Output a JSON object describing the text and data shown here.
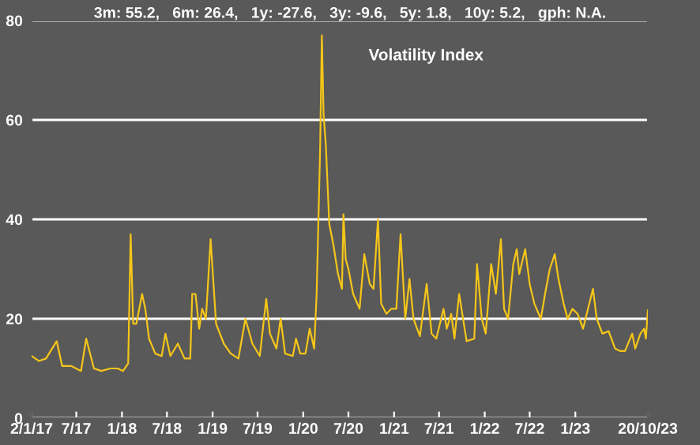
{
  "chart_data": {
    "type": "line",
    "title": "Volatility Index",
    "annotations": [
      "3m: 55.2,   6m: 26.4,   1y: -27.6,   3y: -9.6,   5y: 1.8,   10y: 5.2,   gph: N.A."
    ],
    "x": [
      "2017-01-02",
      "2017-02-01",
      "2017-03-01",
      "2017-04-13",
      "2017-05-05",
      "2017-06-10",
      "2017-07-20",
      "2017-08-10",
      "2017-09-10",
      "2017-10-10",
      "2017-11-15",
      "2017-12-15",
      "2018-01-05",
      "2018-01-26",
      "2018-02-05",
      "2018-02-15",
      "2018-02-28",
      "2018-03-23",
      "2018-04-05",
      "2018-04-20",
      "2018-05-15",
      "2018-06-10",
      "2018-06-25",
      "2018-07-15",
      "2018-08-14",
      "2018-09-10",
      "2018-10-03",
      "2018-10-11",
      "2018-10-24",
      "2018-11-08",
      "2018-11-20",
      "2018-12-05",
      "2018-12-24",
      "2019-01-15",
      "2019-02-15",
      "2019-03-15",
      "2019-04-15",
      "2019-05-13",
      "2019-06-10",
      "2019-07-10",
      "2019-08-05",
      "2019-08-20",
      "2019-09-15",
      "2019-10-02",
      "2019-10-20",
      "2019-11-20",
      "2019-12-03",
      "2019-12-20",
      "2020-01-10",
      "2020-01-27",
      "2020-02-14",
      "2020-02-24",
      "2020-03-09",
      "2020-03-16",
      "2020-03-23",
      "2020-04-01",
      "2020-04-15",
      "2020-05-01",
      "2020-05-20",
      "2020-06-05",
      "2020-06-11",
      "2020-06-20",
      "2020-07-01",
      "2020-07-20",
      "2020-08-15",
      "2020-09-03",
      "2020-09-25",
      "2020-10-10",
      "2020-10-28",
      "2020-11-10",
      "2020-12-01",
      "2020-12-20",
      "2021-01-10",
      "2021-01-27",
      "2021-02-15",
      "2021-03-04",
      "2021-03-20",
      "2021-04-15",
      "2021-05-12",
      "2021-06-01",
      "2021-06-20",
      "2021-07-19",
      "2021-08-01",
      "2021-08-19",
      "2021-09-01",
      "2021-09-20",
      "2021-10-20",
      "2021-11-20",
      "2021-12-01",
      "2021-12-20",
      "2022-01-05",
      "2022-01-27",
      "2022-02-15",
      "2022-03-07",
      "2022-03-20",
      "2022-04-05",
      "2022-04-26",
      "2022-05-10",
      "2022-05-20",
      "2022-06-13",
      "2022-07-01",
      "2022-07-20",
      "2022-08-15",
      "2022-09-01",
      "2022-09-20",
      "2022-10-10",
      "2022-10-25",
      "2022-11-15",
      "2022-12-01",
      "2022-12-20",
      "2023-01-10",
      "2023-02-01",
      "2023-03-13",
      "2023-03-28",
      "2023-04-20",
      "2023-05-15",
      "2023-06-10",
      "2023-07-01",
      "2023-07-20",
      "2023-08-18",
      "2023-08-30",
      "2023-09-20",
      "2023-10-05",
      "2023-10-12",
      "2023-10-20"
    ],
    "series": [
      {
        "color": "#f5c518",
        "values": [
          12.5,
          11.5,
          12,
          15.5,
          10.5,
          10.5,
          9.5,
          16,
          10,
          9.5,
          10,
          10,
          9.5,
          11,
          37,
          19,
          19,
          25,
          22,
          16,
          13,
          12.5,
          17,
          12.5,
          15,
          12,
          12,
          25,
          25,
          18,
          22,
          20,
          36,
          19,
          15,
          13,
          12,
          20,
          15,
          12.5,
          24,
          17,
          14,
          20,
          13,
          12.5,
          16,
          13,
          13,
          18,
          14,
          25,
          54,
          77,
          61,
          55,
          39,
          35,
          29,
          26,
          41,
          32,
          30,
          25,
          22,
          33,
          27,
          26,
          40,
          23,
          21,
          22,
          22,
          37,
          20,
          28,
          20,
          16.5,
          27,
          17,
          16,
          22,
          18,
          21,
          16,
          25,
          15.5,
          16,
          31,
          20,
          17,
          31,
          25,
          36,
          22,
          20,
          31,
          34,
          29,
          34,
          27,
          23,
          20,
          25,
          30,
          33,
          28,
          23,
          20,
          22,
          21,
          18,
          26,
          20,
          17,
          17.5,
          14,
          13.5,
          13.5,
          17,
          14,
          17,
          18,
          16,
          21.7
        ]
      }
    ],
    "xlim": [
      "2017-01-02",
      "2023-10-20"
    ],
    "xticks": [
      {
        "value": "2017-01-02",
        "label": "2/1/17"
      },
      {
        "value": "2017-07-01",
        "label": "7/17"
      },
      {
        "value": "2018-01-01",
        "label": "1/18"
      },
      {
        "value": "2018-07-01",
        "label": "7/18"
      },
      {
        "value": "2019-01-01",
        "label": "1/19"
      },
      {
        "value": "2019-07-01",
        "label": "7/19"
      },
      {
        "value": "2020-01-01",
        "label": "1/20"
      },
      {
        "value": "2020-07-01",
        "label": "7/20"
      },
      {
        "value": "2021-01-01",
        "label": "1/21"
      },
      {
        "value": "2021-07-01",
        "label": "7/21"
      },
      {
        "value": "2022-01-01",
        "label": "1/22"
      },
      {
        "value": "2022-07-01",
        "label": "7/22"
      },
      {
        "value": "2023-01-01",
        "label": "1/23"
      },
      {
        "value": "2023-10-20",
        "label": "20/10/23"
      }
    ],
    "ylim": [
      0,
      80
    ],
    "yticks": [
      0,
      20,
      40,
      60,
      80
    ],
    "grid": "y",
    "marker": "none",
    "line_style": "solid"
  }
}
